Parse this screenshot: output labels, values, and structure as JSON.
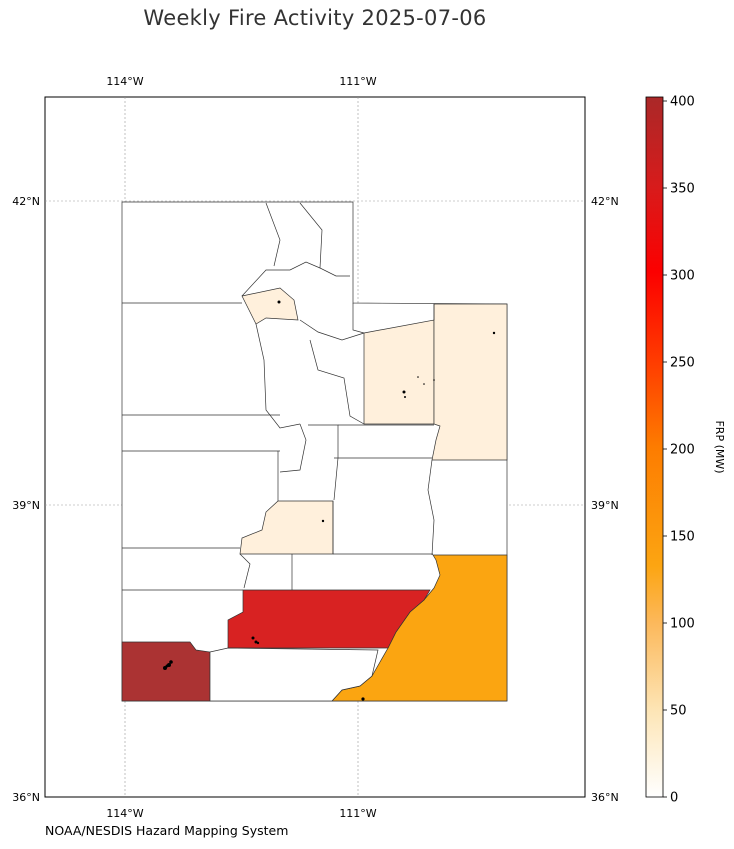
{
  "title": "Weekly Fire Activity 2025-07-06",
  "source": "NOAA/NESDIS Hazard Mapping System",
  "map": {
    "lon_ticks": [
      "114°W",
      "111°W"
    ],
    "lat_ticks": [
      "42°N",
      "39°N",
      "36°N"
    ],
    "lat_bottom_label": "36°N",
    "gridlines": true
  },
  "colorbar": {
    "label": "FRP (MW)",
    "ticks": [
      "0",
      "50",
      "100",
      "150",
      "200",
      "250",
      "300",
      "350",
      "400"
    ],
    "min": 0,
    "max": 400,
    "colors": [
      "#ffffff",
      "#fde6b8",
      "#fcb85a",
      "#fca512",
      "#fd7c00",
      "#ff3d00",
      "#fc0000",
      "#d81b1b",
      "#aa2828"
    ]
  },
  "fill_colors": {
    "low": "#fff0dc",
    "medium": "#fba511",
    "high": "#d82222",
    "very_high": "#ab3333",
    "none": "#ffffff"
  }
}
